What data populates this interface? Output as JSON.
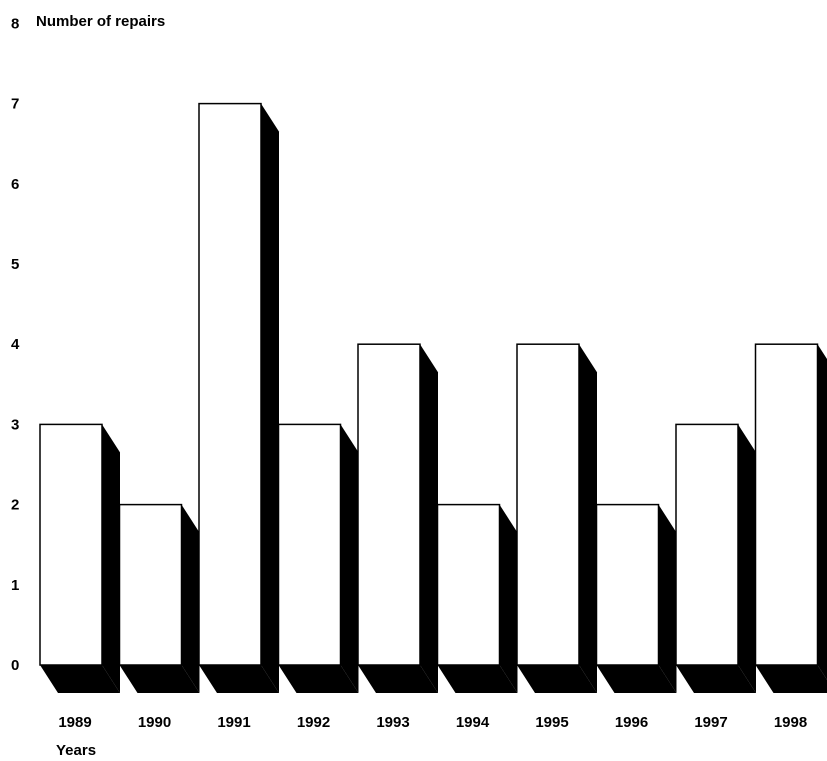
{
  "chart_data": {
    "type": "bar",
    "style": "3d-shadow",
    "ylabel": "Number of repairs",
    "xlabel": "Years",
    "categories": [
      "1989",
      "1990",
      "1991",
      "1992",
      "1993",
      "1994",
      "1995",
      "1996",
      "1997",
      "1998"
    ],
    "values": [
      3,
      2,
      7,
      3,
      4,
      2,
      4,
      2,
      3,
      4
    ],
    "ylim": [
      0,
      8
    ],
    "yticks": [
      "0",
      "1",
      "2",
      "3",
      "4",
      "5",
      "6",
      "7",
      "8"
    ],
    "grid": false,
    "bar_face_color": "#ffffff",
    "bar_shadow_color": "#000000"
  }
}
